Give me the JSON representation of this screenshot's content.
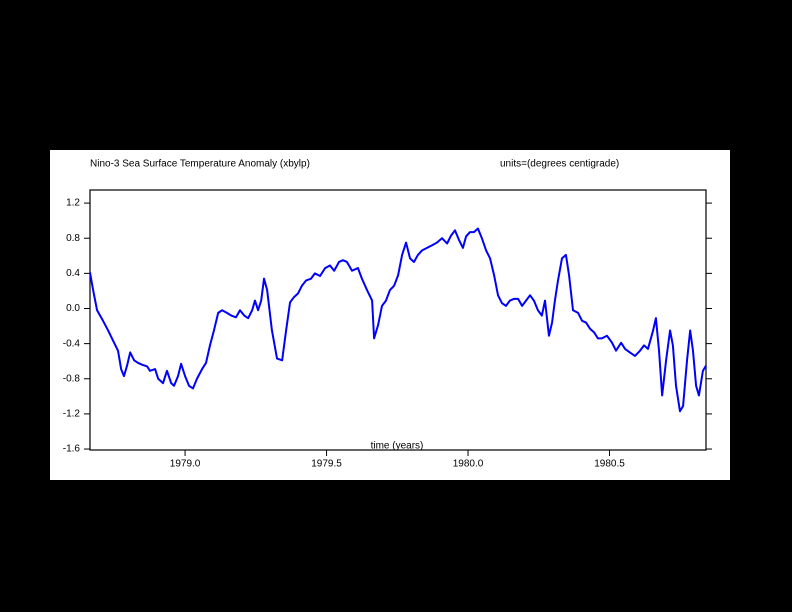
{
  "chart_data": {
    "type": "line",
    "title": "Nino-3 Sea Surface Temperature Anomaly (xbylp)",
    "subtitle": "units=(degrees centigrade)",
    "x_label": "time (years)",
    "color": "#0000ff",
    "x": [
      1978.664,
      1978.675,
      1978.689,
      1978.71,
      1978.728,
      1978.746,
      1978.763,
      1978.774,
      1978.784,
      1978.795,
      1978.806,
      1978.82,
      1978.834,
      1978.848,
      1978.866,
      1978.876,
      1978.894,
      1978.905,
      1978.922,
      1978.936,
      1978.951,
      1978.961,
      1978.975,
      1978.986,
      1979.0,
      1979.014,
      1979.028,
      1979.042,
      1979.06,
      1979.074,
      1979.088,
      1979.102,
      1979.117,
      1979.131,
      1979.148,
      1979.163,
      1979.18,
      1979.194,
      1979.209,
      1979.223,
      1979.237,
      1979.247,
      1979.258,
      1979.269,
      1979.279,
      1979.29,
      1979.307,
      1979.325,
      1979.343,
      1979.357,
      1979.371,
      1979.385,
      1979.399,
      1979.413,
      1979.428,
      1979.445,
      1979.459,
      1979.477,
      1979.495,
      1979.512,
      1979.527,
      1979.544,
      1979.558,
      1979.572,
      1979.59,
      1979.611,
      1979.625,
      1979.643,
      1979.661,
      1979.668,
      1979.682,
      1979.696,
      1979.71,
      1979.724,
      1979.739,
      1979.753,
      1979.767,
      1979.781,
      1979.795,
      1979.809,
      1979.823,
      1979.837,
      1979.855,
      1979.873,
      1979.89,
      1979.908,
      1979.926,
      1979.94,
      1979.954,
      1979.968,
      1979.982,
      1979.993,
      1980.007,
      1980.021,
      1980.035,
      1980.049,
      1980.064,
      1980.078,
      1980.092,
      1980.106,
      1980.12,
      1980.134,
      1980.148,
      1980.163,
      1980.177,
      1980.191,
      1980.205,
      1980.219,
      1980.233,
      1980.247,
      1980.261,
      1980.272,
      1980.286,
      1980.297,
      1980.307,
      1980.318,
      1980.332,
      1980.346,
      1980.357,
      1980.371,
      1980.389,
      1980.403,
      1980.417,
      1980.431,
      1980.445,
      1980.459,
      1980.473,
      1980.491,
      1980.509,
      1980.523,
      1980.541,
      1980.555,
      1980.572,
      1980.59,
      1980.608,
      1980.622,
      1980.636,
      1980.654,
      1980.664,
      1980.675,
      1980.686,
      1980.7,
      1980.714,
      1980.724,
      1980.735,
      1980.749,
      1980.76,
      1980.774,
      1980.785,
      1980.795,
      1980.806,
      1980.816,
      1980.83,
      1980.841
    ],
    "values": [
      0.41,
      0.21,
      -0.02,
      -0.14,
      -0.25,
      -0.37,
      -0.48,
      -0.69,
      -0.77,
      -0.65,
      -0.5,
      -0.59,
      -0.62,
      -0.64,
      -0.66,
      -0.71,
      -0.69,
      -0.8,
      -0.85,
      -0.71,
      -0.85,
      -0.88,
      -0.77,
      -0.63,
      -0.77,
      -0.88,
      -0.91,
      -0.8,
      -0.69,
      -0.62,
      -0.42,
      -0.25,
      -0.05,
      -0.02,
      -0.05,
      -0.08,
      -0.1,
      -0.02,
      -0.08,
      -0.11,
      -0.02,
      0.09,
      -0.02,
      0.09,
      0.34,
      0.21,
      -0.25,
      -0.57,
      -0.59,
      -0.25,
      0.07,
      0.13,
      0.17,
      0.26,
      0.32,
      0.34,
      0.4,
      0.37,
      0.46,
      0.49,
      0.43,
      0.53,
      0.55,
      0.53,
      0.43,
      0.46,
      0.34,
      0.21,
      0.09,
      -0.34,
      -0.19,
      0.03,
      0.09,
      0.21,
      0.26,
      0.38,
      0.61,
      0.75,
      0.57,
      0.53,
      0.61,
      0.66,
      0.69,
      0.72,
      0.75,
      0.8,
      0.74,
      0.83,
      0.89,
      0.78,
      0.69,
      0.82,
      0.87,
      0.87,
      0.91,
      0.8,
      0.66,
      0.57,
      0.38,
      0.15,
      0.06,
      0.03,
      0.09,
      0.11,
      0.11,
      0.03,
      0.09,
      0.15,
      0.09,
      -0.02,
      -0.08,
      0.09,
      -0.31,
      -0.16,
      0.09,
      0.32,
      0.57,
      0.61,
      0.38,
      -0.02,
      -0.05,
      -0.14,
      -0.16,
      -0.23,
      -0.27,
      -0.34,
      -0.34,
      -0.31,
      -0.39,
      -0.48,
      -0.39,
      -0.46,
      -0.5,
      -0.54,
      -0.48,
      -0.42,
      -0.46,
      -0.25,
      -0.11,
      -0.48,
      -0.99,
      -0.59,
      -0.25,
      -0.42,
      -0.88,
      -1.17,
      -1.11,
      -0.59,
      -0.25,
      -0.48,
      -0.88,
      -0.99,
      -0.71,
      -0.65
    ],
    "xlim": [
      1978.664,
      1980.841
    ],
    "ylim": [
      -1.611,
      1.349
    ],
    "xticks": [
      {
        "value": 1979,
        "label": "1979.0"
      },
      1979.5,
      {
        "value": 1980,
        "label": "1980.0"
      },
      1980.5
    ],
    "yticks": [
      1.2,
      0.8,
      0.4,
      {
        "value": 0,
        "label": "0.0"
      },
      -0.4,
      -0.8,
      -1.2,
      -1.6
    ]
  }
}
